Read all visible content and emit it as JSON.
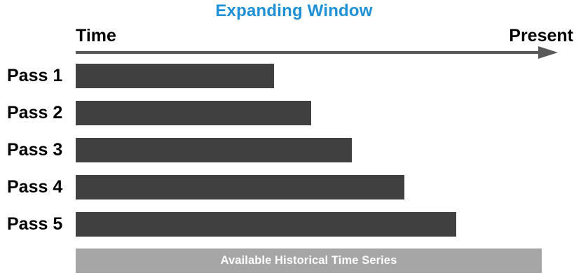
{
  "title": "Expanding Window",
  "axis": {
    "left_label": "Time",
    "right_label": "Present"
  },
  "passes": [
    {
      "label": "Pass 1",
      "extent": 0.425
    },
    {
      "label": "Pass 2",
      "extent": 0.506
    },
    {
      "label": "Pass 3",
      "extent": 0.592
    },
    {
      "label": "Pass 4",
      "extent": 0.705
    },
    {
      "label": "Pass 5",
      "extent": 0.817
    }
  ],
  "history": {
    "label": "Available Historical Time Series"
  },
  "colors": {
    "title": "#1e90d6",
    "arrow": "#595959",
    "pass_bar": "#404040",
    "history_bar": "#a6a6a6"
  }
}
